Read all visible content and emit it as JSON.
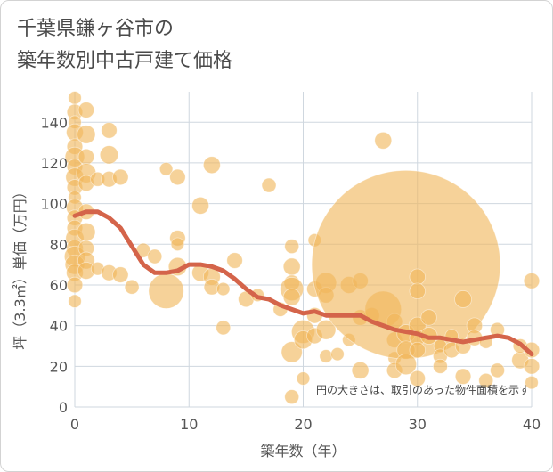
{
  "title_line1": "千葉県鎌ヶ谷市の",
  "title_line2": "築年数別中古戸建て価格",
  "chart_data": {
    "type": "scatter",
    "xlabel": "築年数（年）",
    "ylabel": "坪（3.3㎡）単価（万円）",
    "xlim": [
      0,
      40
    ],
    "ylim": [
      0,
      155
    ],
    "x_ticks": [
      0,
      10,
      20,
      30,
      40
    ],
    "y_ticks": [
      0,
      20,
      40,
      60,
      80,
      100,
      120,
      140
    ],
    "grid": true,
    "annotation": "円の大きさは、取引のあった物件面積を示す",
    "colors": {
      "bubble": "#f0b65a",
      "trend": "#d4644a",
      "grid": "#cfd7df"
    },
    "points": [
      {
        "x": 0,
        "y": 152,
        "s": 1
      },
      {
        "x": 0,
        "y": 145,
        "s": 1.2
      },
      {
        "x": 0,
        "y": 140,
        "s": 1
      },
      {
        "x": 0,
        "y": 135,
        "s": 1.3
      },
      {
        "x": 0,
        "y": 128,
        "s": 1.2
      },
      {
        "x": 0,
        "y": 123,
        "s": 1.5
      },
      {
        "x": 0,
        "y": 118,
        "s": 1.2
      },
      {
        "x": 0,
        "y": 113,
        "s": 1.4
      },
      {
        "x": 0,
        "y": 108,
        "s": 1.2
      },
      {
        "x": 0,
        "y": 103,
        "s": 1
      },
      {
        "x": 0,
        "y": 98,
        "s": 1.3
      },
      {
        "x": 0,
        "y": 93,
        "s": 1.2
      },
      {
        "x": 0,
        "y": 88,
        "s": 1.2
      },
      {
        "x": 0,
        "y": 83,
        "s": 1.4
      },
      {
        "x": 0,
        "y": 78,
        "s": 1.3
      },
      {
        "x": 0,
        "y": 74,
        "s": 1.6
      },
      {
        "x": 0,
        "y": 70,
        "s": 1.5
      },
      {
        "x": 0,
        "y": 66,
        "s": 1.3
      },
      {
        "x": 0,
        "y": 60,
        "s": 1.2
      },
      {
        "x": 0,
        "y": 52,
        "s": 1
      },
      {
        "x": 1,
        "y": 146,
        "s": 1.2
      },
      {
        "x": 1,
        "y": 134,
        "s": 1.4
      },
      {
        "x": 1,
        "y": 123,
        "s": 1.2
      },
      {
        "x": 1,
        "y": 115,
        "s": 1.5
      },
      {
        "x": 1,
        "y": 110,
        "s": 1.2
      },
      {
        "x": 1,
        "y": 96,
        "s": 1.2
      },
      {
        "x": 1,
        "y": 86,
        "s": 1.4
      },
      {
        "x": 1,
        "y": 78,
        "s": 1.2
      },
      {
        "x": 1,
        "y": 72,
        "s": 1.3
      },
      {
        "x": 1,
        "y": 67,
        "s": 1.3
      },
      {
        "x": 2,
        "y": 112,
        "s": 1.1
      },
      {
        "x": 2,
        "y": 68,
        "s": 1
      },
      {
        "x": 3,
        "y": 136,
        "s": 1.2
      },
      {
        "x": 3,
        "y": 124,
        "s": 1.4
      },
      {
        "x": 3,
        "y": 112,
        "s": 1.2
      },
      {
        "x": 3,
        "y": 66,
        "s": 1.2
      },
      {
        "x": 4,
        "y": 113,
        "s": 1.2
      },
      {
        "x": 4,
        "y": 65,
        "s": 1.2
      },
      {
        "x": 5,
        "y": 59,
        "s": 1.1
      },
      {
        "x": 6,
        "y": 77,
        "s": 1.1
      },
      {
        "x": 7,
        "y": 74,
        "s": 1.1
      },
      {
        "x": 8,
        "y": 117,
        "s": 1
      },
      {
        "x": 8,
        "y": 57,
        "s": 2.7
      },
      {
        "x": 9,
        "y": 113,
        "s": 1.2
      },
      {
        "x": 9,
        "y": 83,
        "s": 1.2
      },
      {
        "x": 9,
        "y": 80,
        "s": 1
      },
      {
        "x": 9,
        "y": 69,
        "s": 1.4
      },
      {
        "x": 11,
        "y": 99,
        "s": 1.3
      },
      {
        "x": 11,
        "y": 66,
        "s": 1.3
      },
      {
        "x": 12,
        "y": 119,
        "s": 1.3
      },
      {
        "x": 12,
        "y": 64,
        "s": 1.3
      },
      {
        "x": 12,
        "y": 59,
        "s": 1.2
      },
      {
        "x": 13,
        "y": 58,
        "s": 1
      },
      {
        "x": 13,
        "y": 39,
        "s": 1.1
      },
      {
        "x": 14,
        "y": 72,
        "s": 1.2
      },
      {
        "x": 15,
        "y": 53,
        "s": 1.2
      },
      {
        "x": 16,
        "y": 55,
        "s": 1
      },
      {
        "x": 17,
        "y": 109,
        "s": 1.1
      },
      {
        "x": 18,
        "y": 48,
        "s": 1.1
      },
      {
        "x": 19,
        "y": 79,
        "s": 1.1
      },
      {
        "x": 19,
        "y": 69,
        "s": 1.3
      },
      {
        "x": 19,
        "y": 61,
        "s": 1.2
      },
      {
        "x": 19,
        "y": 58,
        "s": 1.8
      },
      {
        "x": 19,
        "y": 54,
        "s": 1.3
      },
      {
        "x": 19,
        "y": 27,
        "s": 1.6
      },
      {
        "x": 19,
        "y": 5,
        "s": 1.1
      },
      {
        "x": 20,
        "y": 37,
        "s": 1.8
      },
      {
        "x": 20,
        "y": 33,
        "s": 1.4
      },
      {
        "x": 20,
        "y": 14,
        "s": 1
      },
      {
        "x": 21,
        "y": 82,
        "s": 1
      },
      {
        "x": 21,
        "y": 58,
        "s": 1.2
      },
      {
        "x": 21,
        "y": 45,
        "s": 1.2
      },
      {
        "x": 21,
        "y": 35,
        "s": 1.2
      },
      {
        "x": 22,
        "y": 61,
        "s": 1.6
      },
      {
        "x": 22,
        "y": 55,
        "s": 1.2
      },
      {
        "x": 22,
        "y": 38,
        "s": 1.5
      },
      {
        "x": 22,
        "y": 25,
        "s": 1
      },
      {
        "x": 23,
        "y": 26,
        "s": 1
      },
      {
        "x": 24,
        "y": 60,
        "s": 1.3
      },
      {
        "x": 24,
        "y": 33,
        "s": 1
      },
      {
        "x": 25,
        "y": 62,
        "s": 1.2
      },
      {
        "x": 25,
        "y": 44,
        "s": 1.2
      },
      {
        "x": 25,
        "y": 18,
        "s": 1.3
      },
      {
        "x": 26,
        "y": 45,
        "s": 1.2
      },
      {
        "x": 27,
        "y": 131,
        "s": 1.3
      },
      {
        "x": 27,
        "y": 48,
        "s": 2.8
      },
      {
        "x": 28,
        "y": 42,
        "s": 1.2
      },
      {
        "x": 28,
        "y": 33,
        "s": 1.2
      },
      {
        "x": 28,
        "y": 24,
        "s": 1
      },
      {
        "x": 28,
        "y": 18,
        "s": 1.2
      },
      {
        "x": 29,
        "y": 70,
        "s": 14.5
      },
      {
        "x": 29,
        "y": 36,
        "s": 1.4
      },
      {
        "x": 29,
        "y": 28,
        "s": 1.4
      },
      {
        "x": 29,
        "y": 21,
        "s": 1.6
      },
      {
        "x": 30,
        "y": 64,
        "s": 1.2
      },
      {
        "x": 30,
        "y": 57,
        "s": 1.2
      },
      {
        "x": 30,
        "y": 40,
        "s": 1.3
      },
      {
        "x": 30,
        "y": 34,
        "s": 1.2
      },
      {
        "x": 30,
        "y": 28,
        "s": 1.2
      },
      {
        "x": 30,
        "y": 14,
        "s": 1.2
      },
      {
        "x": 31,
        "y": 44,
        "s": 1.2
      },
      {
        "x": 31,
        "y": 35,
        "s": 1.3
      },
      {
        "x": 32,
        "y": 30,
        "s": 1
      },
      {
        "x": 32,
        "y": 25,
        "s": 1.1
      },
      {
        "x": 32,
        "y": 20,
        "s": 1.1
      },
      {
        "x": 33,
        "y": 35,
        "s": 1
      },
      {
        "x": 33,
        "y": 28,
        "s": 1.2
      },
      {
        "x": 34,
        "y": 53,
        "s": 1.3
      },
      {
        "x": 34,
        "y": 30,
        "s": 1.2
      },
      {
        "x": 34,
        "y": 15,
        "s": 1.2
      },
      {
        "x": 35,
        "y": 40,
        "s": 1.2
      },
      {
        "x": 35,
        "y": 34,
        "s": 1.2
      },
      {
        "x": 36,
        "y": 32,
        "s": 1
      },
      {
        "x": 36,
        "y": 13,
        "s": 1.1
      },
      {
        "x": 37,
        "y": 38,
        "s": 1.1
      },
      {
        "x": 37,
        "y": 18,
        "s": 1.1
      },
      {
        "x": 39,
        "y": 23,
        "s": 1.3
      },
      {
        "x": 39,
        "y": 30,
        "s": 1.1
      },
      {
        "x": 40,
        "y": 62,
        "s": 1.2
      },
      {
        "x": 40,
        "y": 28,
        "s": 1.2
      },
      {
        "x": 40,
        "y": 20,
        "s": 1.2
      },
      {
        "x": 40,
        "y": 12,
        "s": 1
      }
    ],
    "trend": {
      "x": [
        0,
        1,
        2,
        3,
        4,
        5,
        6,
        7,
        8,
        9,
        10,
        11,
        12,
        13,
        14,
        15,
        16,
        17,
        18,
        19,
        20,
        21,
        22,
        23,
        24,
        25,
        26,
        27,
        28,
        29,
        30,
        31,
        32,
        33,
        34,
        35,
        36,
        37,
        38,
        39,
        40
      ],
      "y": [
        94,
        96,
        96,
        93,
        88,
        79,
        70,
        66,
        66,
        67,
        70,
        70,
        69,
        67,
        63,
        58,
        54,
        53,
        50,
        48,
        46,
        47,
        45,
        45,
        45,
        45,
        42,
        40,
        38,
        37,
        36,
        34,
        34,
        33,
        32,
        33,
        34,
        35,
        34,
        31,
        26
      ]
    }
  }
}
